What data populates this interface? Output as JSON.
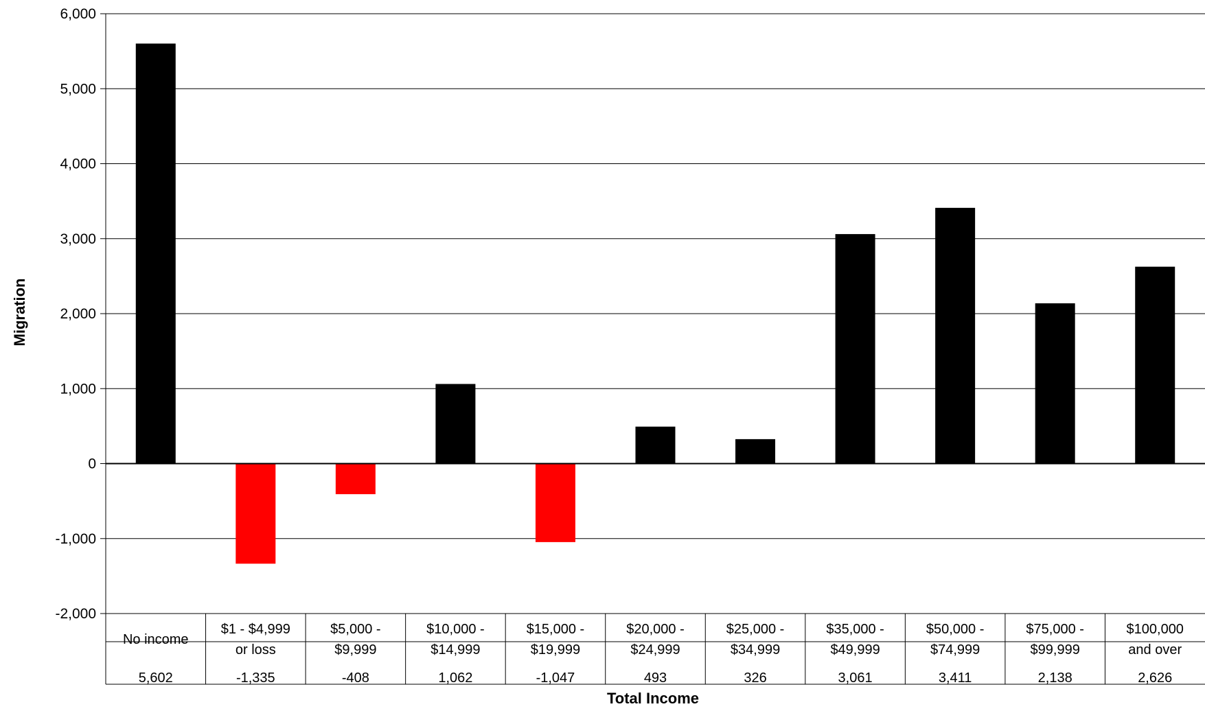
{
  "chart_data": {
    "type": "bar",
    "ylabel": "Migration",
    "xlabel": "Total Income",
    "ylim": [
      -2000,
      6000
    ],
    "ytick_step": 1000,
    "grid": true,
    "legend": "none",
    "data_table": true,
    "categories": [
      "No income",
      "$1 - $4,999 or loss",
      "$5,000 - $9,999",
      "$10,000 - $14,999",
      "$15,000 - $19,999",
      "$20,000 - $24,999",
      "$25,000 - $34,999",
      "$35,000 - $49,999",
      "$50,000 - $74,999",
      "$75,000 - $99,999",
      "$100,000 and over"
    ],
    "category_lines": [
      [
        "No income"
      ],
      [
        "$1 - $4,999",
        "or loss"
      ],
      [
        "$5,000 -",
        "$9,999"
      ],
      [
        "$10,000 -",
        "$14,999"
      ],
      [
        "$15,000 -",
        "$19,999"
      ],
      [
        "$20,000 -",
        "$24,999"
      ],
      [
        "$25,000 -",
        "$34,999"
      ],
      [
        "$35,000 -",
        "$49,999"
      ],
      [
        "$50,000 -",
        "$74,999"
      ],
      [
        "$75,000 -",
        "$99,999"
      ],
      [
        "$100,000",
        "and over"
      ]
    ],
    "values": [
      5602,
      -1335,
      -408,
      1062,
      -1047,
      493,
      326,
      3061,
      3411,
      2138,
      2626
    ],
    "value_labels": [
      "5,602",
      "-1,335",
      "-408",
      "1,062",
      "-1,047",
      "493",
      "326",
      "3,061",
      "3,411",
      "2,138",
      "2,626"
    ],
    "ytick_labels": [
      "-2,000",
      "-1,000",
      "0",
      "1,000",
      "2,000",
      "3,000",
      "4,000",
      "5,000",
      "6,000"
    ],
    "colors": {
      "positive": "#000000",
      "negative": "#ff0000",
      "grid": "#000000"
    }
  }
}
